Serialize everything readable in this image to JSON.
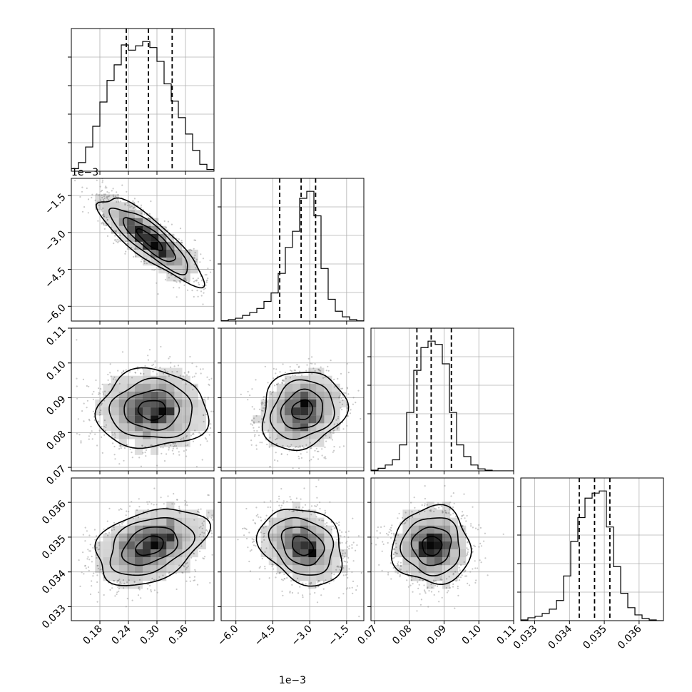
{
  "chart_data": {
    "type": "corner",
    "grid": true,
    "colors": {
      "line": "#000000",
      "density": "#000000",
      "points": "#888888",
      "grid": "#b0b0b0"
    },
    "parameters": [
      {
        "id": "p0",
        "range": [
          0.12,
          0.42
        ],
        "ticks": [
          0.18,
          0.24,
          0.3,
          0.36
        ],
        "tick_labels": [
          "0.18",
          "0.24",
          "0.30",
          "0.36"
        ],
        "offset_text": ""
      },
      {
        "id": "p1",
        "range": [
          -6.6,
          -0.8
        ],
        "ticks": [
          -6.0,
          -4.5,
          -3.0,
          -1.5
        ],
        "tick_labels": [
          "−6.0",
          "−4.5",
          "−3.0",
          "−1.5"
        ],
        "offset_text": "1e−3"
      },
      {
        "id": "p2",
        "range": [
          0.069,
          0.11
        ],
        "ticks": [
          0.07,
          0.08,
          0.09,
          0.1,
          0.11
        ],
        "tick_labels": [
          "0.07",
          "0.08",
          "0.09",
          "0.10",
          "0.11"
        ],
        "offset_text": ""
      },
      {
        "id": "p3",
        "range": [
          0.0326,
          0.0367
        ],
        "ticks": [
          0.033,
          0.034,
          0.035,
          0.036
        ],
        "tick_labels": [
          "0.033",
          "0.034",
          "0.035",
          "0.036"
        ],
        "offset_text": ""
      }
    ],
    "histograms": [
      {
        "param": "p0",
        "bin_edges": [
          0.12,
          0.135,
          0.15,
          0.165,
          0.18,
          0.195,
          0.21,
          0.225,
          0.24,
          0.255,
          0.27,
          0.285,
          0.3,
          0.315,
          0.33,
          0.345,
          0.36,
          0.375,
          0.39,
          0.405,
          0.42
        ],
        "counts": [
          3,
          10,
          28,
          52,
          80,
          105,
          123,
          146,
          140,
          145,
          150,
          143,
          127,
          101,
          81,
          62,
          43,
          24,
          8,
          2
        ],
        "quantiles": [
          0.2355,
          0.282,
          0.332
        ]
      },
      {
        "param": "p1",
        "bin_edges": [
          -6.6,
          -6.31,
          -6.02,
          -5.73,
          -5.44,
          -5.15,
          -4.86,
          -4.57,
          -4.28,
          -3.99,
          -3.7,
          -3.41,
          -3.12,
          -2.83,
          -2.54,
          -2.25,
          -1.96,
          -1.67,
          -1.38,
          -1.09,
          -0.8
        ],
        "counts": [
          0.4,
          2,
          4,
          8,
          12,
          18,
          28,
          40,
          68,
          105,
          128,
          175,
          185,
          150,
          75,
          31,
          14,
          6,
          2,
          0.3
        ],
        "quantiles": [
          -4.22,
          -3.35,
          -2.76
        ]
      },
      {
        "param": "p2",
        "bin_edges": [
          0.069,
          0.07105,
          0.0731,
          0.07515,
          0.0772,
          0.07925,
          0.0813,
          0.08335,
          0.0854,
          0.08745,
          0.0895,
          0.09155,
          0.0936,
          0.09565,
          0.0977,
          0.09975,
          0.1018,
          0.10385,
          0.1059,
          0.10795,
          0.11
        ],
        "counts": [
          1,
          4,
          9,
          17,
          40,
          90,
          155,
          190,
          200,
          195,
          165,
          90,
          40,
          22,
          9,
          3,
          1,
          0,
          0,
          0
        ],
        "quantiles": [
          0.0822,
          0.0863,
          0.0921
        ]
      },
      {
        "param": "p3",
        "bin_edges": [
          0.0326,
          0.032805,
          0.03301,
          0.033215,
          0.03342,
          0.033625,
          0.03383,
          0.034035,
          0.03424,
          0.034445,
          0.03465,
          0.034855,
          0.03506,
          0.035265,
          0.03547,
          0.035675,
          0.03588,
          0.036085,
          0.03629,
          0.036495,
          0.0367
        ],
        "counts": [
          1,
          4,
          6,
          10,
          16,
          28,
          62,
          110,
          143,
          170,
          177,
          180,
          130,
          75,
          38,
          18,
          8,
          3,
          1,
          0
        ],
        "quantiles": [
          0.03428,
          0.03472,
          0.03516
        ]
      }
    ],
    "pairs": [
      {
        "x": "p0",
        "y": "p1",
        "center": [
          0.285,
          -3.3
        ],
        "sigma": [
          0.055,
          0.88
        ],
        "rho": -0.85
      },
      {
        "x": "p0",
        "y": "p2",
        "center": [
          0.29,
          0.0865
        ],
        "sigma": [
          0.058,
          0.0056
        ],
        "rho": 0.0
      },
      {
        "x": "p1",
        "y": "p2",
        "center": [
          -3.3,
          0.0865
        ],
        "sigma": [
          0.85,
          0.0056
        ],
        "rho": 0.15
      },
      {
        "x": "p0",
        "y": "p3",
        "center": [
          0.285,
          0.03475
        ],
        "sigma": [
          0.058,
          0.00055
        ],
        "rho": 0.35
      },
      {
        "x": "p1",
        "y": "p3",
        "center": [
          -3.3,
          0.03475
        ],
        "sigma": [
          0.85,
          0.00055
        ],
        "rho": -0.25
      },
      {
        "x": "p2",
        "y": "p3",
        "center": [
          0.0865,
          0.03475
        ],
        "sigma": [
          0.0056,
          0.00055
        ],
        "rho": 0.0
      }
    ],
    "contour_levels_sigma": [
      0.5,
      1.0,
      1.5,
      2.0
    ]
  }
}
